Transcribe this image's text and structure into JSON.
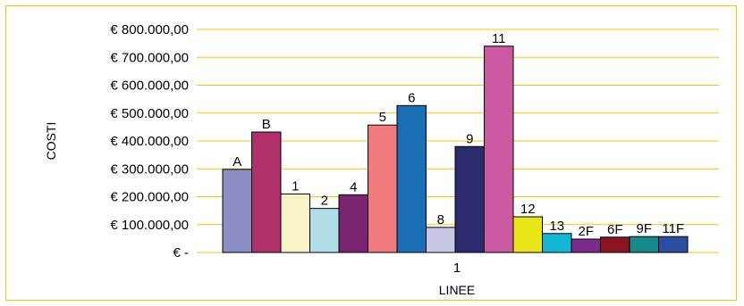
{
  "chart_data": {
    "type": "bar",
    "categories": [
      "1"
    ],
    "xlabel": "LINEE",
    "ylabel": "COSTI",
    "ylim": [
      0,
      800000
    ],
    "y_ticks": [
      {
        "value": 0,
        "label": "€ -"
      },
      {
        "value": 100000,
        "label": "€ 100.000,00"
      },
      {
        "value": 200000,
        "label": "€ 200.000,00"
      },
      {
        "value": 300000,
        "label": "€ 300.000,00"
      },
      {
        "value": 400000,
        "label": "€ 400.000,00"
      },
      {
        "value": 500000,
        "label": "€ 500.000,00"
      },
      {
        "value": 600000,
        "label": "€ 600.000,00"
      },
      {
        "value": 700000,
        "label": "€ 700.000,00"
      },
      {
        "value": 800000,
        "label": "€ 800.000,00"
      }
    ],
    "grid": true,
    "legend": "none",
    "series": [
      {
        "label": "A",
        "value": 298000,
        "color": "#8c8fc6"
      },
      {
        "label": "B",
        "value": 432000,
        "color": "#b0306a"
      },
      {
        "label": "1",
        "value": 210000,
        "color": "#f8f4c8"
      },
      {
        "label": "2",
        "value": 158000,
        "color": "#b0dee8"
      },
      {
        "label": "4",
        "value": 207000,
        "color": "#7a2370"
      },
      {
        "label": "5",
        "value": 457000,
        "color": "#f07a7c"
      },
      {
        "label": "6",
        "value": 527000,
        "color": "#1a6eb4"
      },
      {
        "label": "8",
        "value": 90000,
        "color": "#c8c8e6"
      },
      {
        "label": "9",
        "value": 380000,
        "color": "#2a2a6c"
      },
      {
        "label": "11",
        "value": 740000,
        "color": "#cc5aa0"
      },
      {
        "label": "12",
        "value": 128000,
        "color": "#e8e616"
      },
      {
        "label": "13",
        "value": 68000,
        "color": "#14b6d6"
      },
      {
        "label": "2F",
        "value": 48000,
        "color": "#7c2a8c"
      },
      {
        "label": "6F",
        "value": 55000,
        "color": "#8c1420"
      },
      {
        "label": "9F",
        "value": 57000,
        "color": "#168a8a"
      },
      {
        "label": "11F",
        "value": 57000,
        "color": "#2c4ea0"
      }
    ],
    "colors": {
      "gridline": "#f0c800",
      "frame": "#f0c800",
      "bar_outline": "#000000"
    }
  }
}
